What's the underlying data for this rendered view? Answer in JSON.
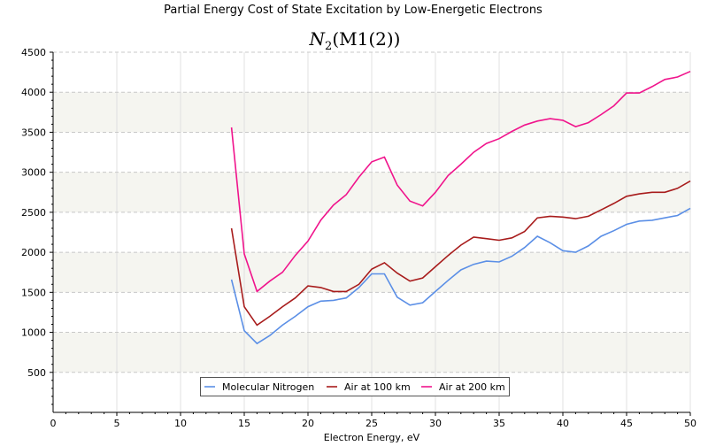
{
  "chart_data": {
    "type": "line",
    "title": "Partial Energy Cost of State Excitation by Low-Energetic Electrons",
    "subtitle": {
      "base": "N",
      "sub": "2",
      "rest": "(M1(2))"
    },
    "xlabel": "Electron Energy, eV",
    "ylabel": "",
    "xlim": [
      0,
      50
    ],
    "ylim": [
      0,
      4500
    ],
    "xticks": [
      0,
      5,
      10,
      15,
      20,
      25,
      30,
      35,
      40,
      45,
      50
    ],
    "yticks": [
      500,
      1000,
      1500,
      2000,
      2500,
      3000,
      3500,
      4000,
      4500
    ],
    "grid": true,
    "legend_position": "bottom-center",
    "x": [
      14,
      15,
      16,
      17,
      18,
      19,
      20,
      21,
      22,
      23,
      24,
      25,
      26,
      27,
      28,
      29,
      30,
      31,
      32,
      33,
      34,
      35,
      36,
      37,
      38,
      39,
      40,
      41,
      42,
      43,
      44,
      45,
      46,
      47,
      48,
      49,
      50
    ],
    "series": [
      {
        "name": "Molecular Nitrogen",
        "color": "#5b8fe6",
        "values": [
          1660,
          1020,
          860,
          960,
          1090,
          1200,
          1320,
          1390,
          1400,
          1430,
          1560,
          1730,
          1730,
          1440,
          1340,
          1370,
          1510,
          1650,
          1780,
          1850,
          1890,
          1880,
          1950,
          2060,
          2200,
          2120,
          2020,
          2000,
          2080,
          2200,
          2270,
          2350,
          2390,
          2400,
          2430,
          2460,
          2550
        ]
      },
      {
        "name": "Air at 100 km",
        "color": "#a81c1c",
        "values": [
          2300,
          1320,
          1090,
          1200,
          1320,
          1430,
          1580,
          1560,
          1510,
          1510,
          1600,
          1790,
          1870,
          1740,
          1640,
          1680,
          1820,
          1960,
          2090,
          2190,
          2170,
          2150,
          2180,
          2260,
          2430,
          2450,
          2440,
          2420,
          2450,
          2530,
          2610,
          2700,
          2730,
          2750,
          2750,
          2800,
          2890
        ]
      },
      {
        "name": "Air at 200 km",
        "color": "#f0148c",
        "values": [
          3560,
          1980,
          1510,
          1640,
          1750,
          1960,
          2140,
          2400,
          2590,
          2720,
          2940,
          3130,
          3190,
          2840,
          2640,
          2580,
          2750,
          2960,
          3100,
          3250,
          3360,
          3420,
          3510,
          3590,
          3640,
          3670,
          3650,
          3570,
          3620,
          3720,
          3830,
          3990,
          3990,
          4070,
          4160,
          4190,
          4260
        ]
      }
    ]
  }
}
